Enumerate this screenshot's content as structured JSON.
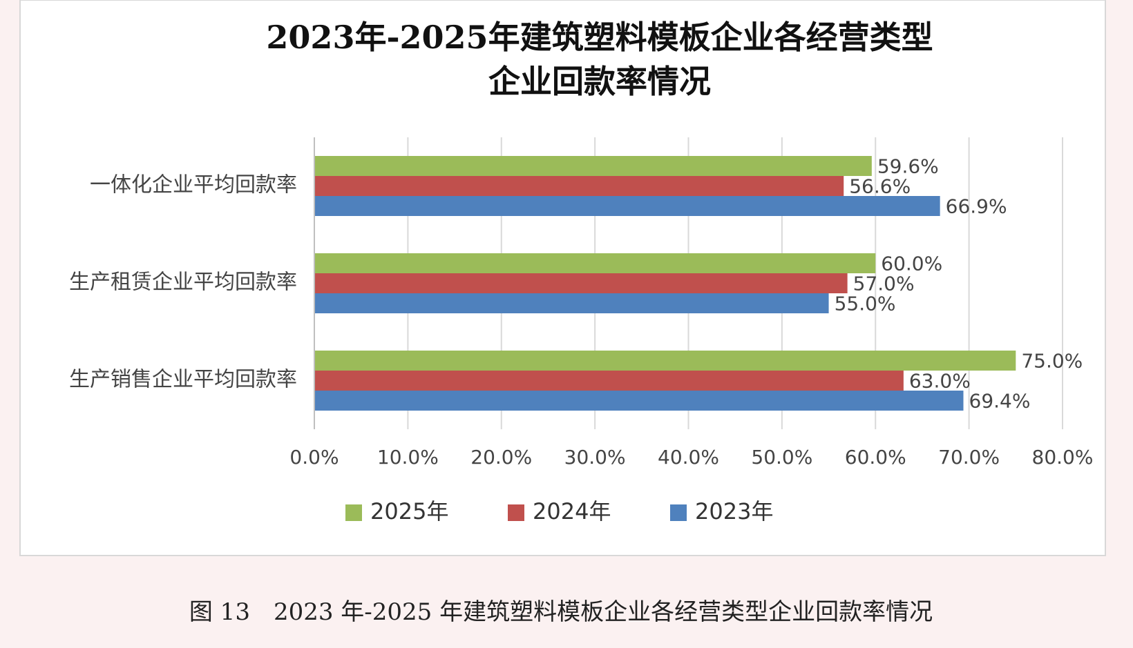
{
  "chart_data": {
    "type": "bar",
    "orientation": "horizontal",
    "title": [
      "2023年-2025年建筑塑料模板企业各经营类型",
      "企业回款率情况"
    ],
    "caption": "图 13　2023 年-2025 年建筑塑料模板企业各经营类型企业回款率情况",
    "categories": [
      "一体化企业平均回款率",
      "生产租赁企业平均回款率",
      "生产销售企业平均回款率"
    ],
    "series": [
      {
        "name": "2025年",
        "color": "#9bbb59",
        "values": [
          59.6,
          60.0,
          75.0
        ],
        "value_labels": [
          "59.6%",
          "60.0%",
          "75.0%"
        ]
      },
      {
        "name": "2024年",
        "color": "#c0504d",
        "values": [
          56.6,
          57.0,
          63.0
        ],
        "value_labels": [
          "56.6%",
          "57.0%",
          "63.0%"
        ]
      },
      {
        "name": "2023年",
        "color": "#4f81bd",
        "values": [
          66.9,
          55.0,
          69.4
        ],
        "value_labels": [
          "66.9%",
          "55.0%",
          "69.4%"
        ]
      }
    ],
    "xlim": [
      0,
      80
    ],
    "xticks": [
      {
        "value": 0,
        "label": "0.0%"
      },
      {
        "value": 10,
        "label": "10.0%"
      },
      {
        "value": 20,
        "label": "20.0%"
      },
      {
        "value": 30,
        "label": "30.0%"
      },
      {
        "value": 40,
        "label": "40.0%"
      },
      {
        "value": 50,
        "label": "50.0%"
      },
      {
        "value": 60,
        "label": "60.0%"
      },
      {
        "value": 70,
        "label": "70.0%"
      },
      {
        "value": 80,
        "label": "80.0%"
      }
    ],
    "grid": true,
    "legend": "bottom"
  }
}
